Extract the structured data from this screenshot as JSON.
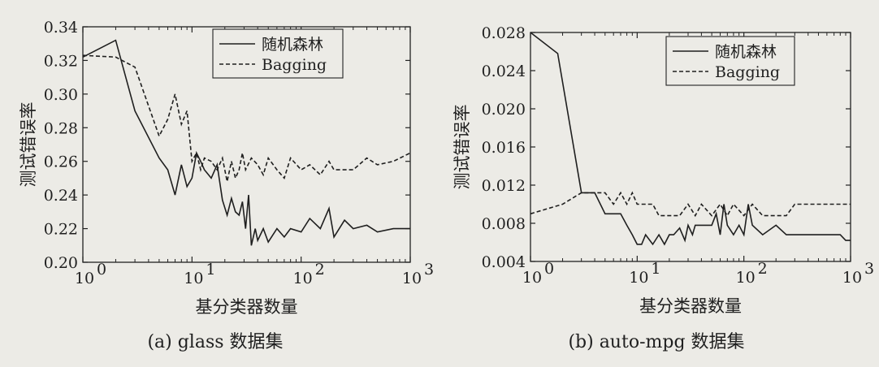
{
  "chart_data": [
    {
      "type": "line",
      "caption": "(a) glass 数据集",
      "xlabel": "基分类器数量",
      "ylabel": "测试错误率",
      "xscale": "log",
      "xlim": [
        1,
        1000
      ],
      "ylim": [
        0.2,
        0.34
      ],
      "xticks": [
        "10",
        "10",
        "10",
        "10"
      ],
      "xtick_exp": [
        "0",
        "1",
        "2",
        "3"
      ],
      "yticks": [
        "0.20",
        "0.22",
        "0.24",
        "0.26",
        "0.28",
        "0.30",
        "0.32",
        "0.34"
      ],
      "legend": "top-right",
      "series": [
        {
          "name": "随机森林",
          "style": "solid",
          "x": [
            1,
            2,
            3,
            5,
            6,
            7,
            8,
            9,
            10,
            11,
            12,
            13,
            15,
            17,
            19,
            21,
            23,
            25,
            27,
            29,
            31,
            33,
            35,
            38,
            40,
            45,
            50,
            60,
            70,
            80,
            100,
            120,
            150,
            180,
            200,
            250,
            300,
            400,
            500,
            700,
            1000
          ],
          "y": [
            0.322,
            0.332,
            0.29,
            0.262,
            0.255,
            0.24,
            0.258,
            0.245,
            0.25,
            0.265,
            0.26,
            0.255,
            0.25,
            0.258,
            0.237,
            0.228,
            0.238,
            0.23,
            0.228,
            0.236,
            0.22,
            0.24,
            0.21,
            0.22,
            0.213,
            0.22,
            0.212,
            0.22,
            0.215,
            0.22,
            0.218,
            0.226,
            0.22,
            0.232,
            0.215,
            0.225,
            0.22,
            0.222,
            0.218,
            0.22,
            0.22
          ]
        },
        {
          "name": "Bagging",
          "style": "dashed",
          "x": [
            1,
            2,
            3,
            5,
            6,
            7,
            8,
            9,
            10,
            11,
            12,
            13,
            15,
            17,
            19,
            21,
            23,
            25,
            27,
            29,
            31,
            35,
            40,
            45,
            50,
            60,
            70,
            80,
            100,
            120,
            150,
            180,
            200,
            250,
            300,
            400,
            500,
            700,
            1000
          ],
          "y": [
            0.323,
            0.322,
            0.316,
            0.275,
            0.285,
            0.3,
            0.282,
            0.29,
            0.26,
            0.265,
            0.255,
            0.262,
            0.26,
            0.255,
            0.262,
            0.248,
            0.26,
            0.25,
            0.255,
            0.265,
            0.255,
            0.262,
            0.258,
            0.252,
            0.262,
            0.255,
            0.25,
            0.262,
            0.255,
            0.258,
            0.252,
            0.26,
            0.255,
            0.255,
            0.255,
            0.262,
            0.258,
            0.26,
            0.265
          ]
        }
      ]
    },
    {
      "type": "line",
      "caption": "(b) auto-mpg 数据集",
      "xlabel": "基分类器数量",
      "ylabel": "测试错误率",
      "xscale": "log",
      "xlim": [
        1,
        1000
      ],
      "ylim": [
        0.004,
        0.028
      ],
      "xticks": [
        "10",
        "10",
        "10",
        "10"
      ],
      "xtick_exp": [
        "0",
        "1",
        "2",
        "3"
      ],
      "yticks": [
        "0.004",
        "0.008",
        "0.012",
        "0.016",
        "0.020",
        "0.024",
        "0.028"
      ],
      "legend": "top-right",
      "series": [
        {
          "name": "随机森林",
          "style": "solid",
          "x": [
            1,
            1.8,
            3,
            4,
            5,
            6,
            7,
            8,
            9,
            10,
            11,
            12,
            14,
            16,
            18,
            20,
            22,
            25,
            28,
            30,
            33,
            35,
            40,
            45,
            50,
            55,
            60,
            65,
            70,
            80,
            90,
            100,
            110,
            120,
            150,
            200,
            250,
            300,
            400,
            500,
            600,
            700,
            800,
            900,
            1000
          ],
          "y": [
            0.028,
            0.0258,
            0.0112,
            0.0112,
            0.009,
            0.009,
            0.009,
            0.0078,
            0.0068,
            0.0058,
            0.0058,
            0.0068,
            0.0058,
            0.0068,
            0.0058,
            0.0068,
            0.0068,
            0.0075,
            0.0062,
            0.0078,
            0.0068,
            0.0078,
            0.0078,
            0.0078,
            0.0078,
            0.009,
            0.0068,
            0.01,
            0.0078,
            0.0068,
            0.0078,
            0.0068,
            0.01,
            0.0078,
            0.0068,
            0.0078,
            0.0068,
            0.0068,
            0.0068,
            0.0068,
            0.0068,
            0.0068,
            0.0068,
            0.0062,
            0.0062
          ]
        },
        {
          "name": "Bagging",
          "style": "dashed",
          "x": [
            1,
            2,
            3,
            4,
            5,
            6,
            7,
            8,
            9,
            10,
            12,
            14,
            16,
            18,
            20,
            25,
            30,
            35,
            40,
            50,
            60,
            70,
            80,
            100,
            120,
            150,
            200,
            250,
            300,
            400,
            500,
            700,
            1000
          ],
          "y": [
            0.009,
            0.01,
            0.0112,
            0.0112,
            0.0112,
            0.01,
            0.0112,
            0.01,
            0.0112,
            0.01,
            0.01,
            0.01,
            0.0088,
            0.0088,
            0.0088,
            0.0088,
            0.01,
            0.0088,
            0.01,
            0.0088,
            0.01,
            0.0088,
            0.01,
            0.0088,
            0.01,
            0.0088,
            0.0088,
            0.0088,
            0.01,
            0.01,
            0.01,
            0.01,
            0.01
          ]
        }
      ]
    }
  ]
}
